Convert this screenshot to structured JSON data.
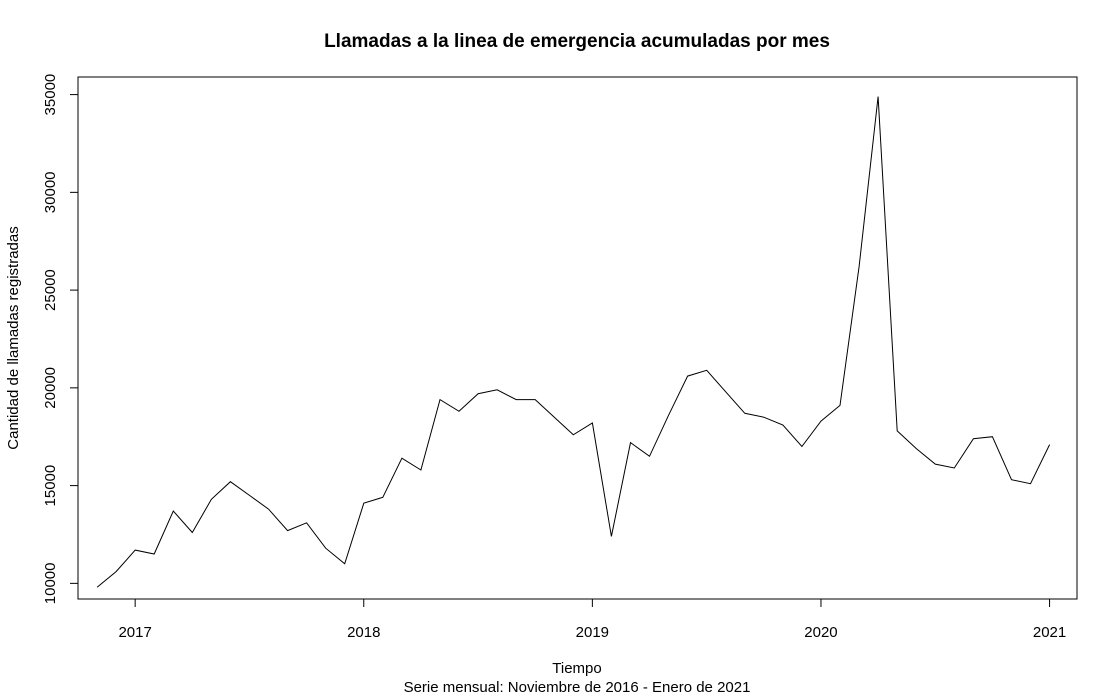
{
  "chart_data": {
    "type": "line",
    "title": "Llamadas a la linea de emergencia acumuladas por mes",
    "xlabel": "Tiempo",
    "subtitle": "Serie mensual: Noviembre de 2016 - Enero de 2021",
    "ylabel": "Cantidad de llamadas registradas",
    "xlim": [
      2016.75,
      2021.12
    ],
    "ylim": [
      9200,
      35900
    ],
    "x_ticks": [
      2017,
      2018,
      2019,
      2020,
      2021
    ],
    "x_tick_labels": [
      "2017",
      "2018",
      "2019",
      "2020",
      "2021"
    ],
    "y_ticks": [
      10000,
      15000,
      20000,
      25000,
      30000,
      35000
    ],
    "y_tick_labels": [
      "10000",
      "15000",
      "20000",
      "25000",
      "30000",
      "35000"
    ],
    "grid": false,
    "line_color": "#000000",
    "x": [
      "2016-11",
      "2016-12",
      "2017-01",
      "2017-02",
      "2017-03",
      "2017-04",
      "2017-05",
      "2017-06",
      "2017-07",
      "2017-08",
      "2017-09",
      "2017-10",
      "2017-11",
      "2017-12",
      "2018-01",
      "2018-02",
      "2018-03",
      "2018-04",
      "2018-05",
      "2018-06",
      "2018-07",
      "2018-08",
      "2018-09",
      "2018-10",
      "2018-11",
      "2018-12",
      "2019-01",
      "2019-02",
      "2019-03",
      "2019-04",
      "2019-05",
      "2019-06",
      "2019-07",
      "2019-08",
      "2019-09",
      "2019-10",
      "2019-11",
      "2019-12",
      "2020-01",
      "2020-02",
      "2020-03",
      "2020-04",
      "2020-05",
      "2020-06",
      "2020-07",
      "2020-08",
      "2020-09",
      "2020-10",
      "2020-11",
      "2020-12",
      "2021-01"
    ],
    "values": [
      9800,
      10600,
      11700,
      11500,
      13700,
      12600,
      14300,
      15200,
      14500,
      13800,
      12700,
      13100,
      11800,
      11000,
      14100,
      14400,
      16400,
      15800,
      19400,
      18800,
      19700,
      19900,
      19400,
      19400,
      18500,
      17600,
      18200,
      12400,
      17200,
      16500,
      18600,
      20600,
      20900,
      19800,
      18700,
      18500,
      18100,
      17000,
      18300,
      19100,
      26200,
      34900,
      17800,
      16900,
      16100,
      15900,
      17400,
      17500,
      15300,
      15100,
      17100
    ]
  }
}
